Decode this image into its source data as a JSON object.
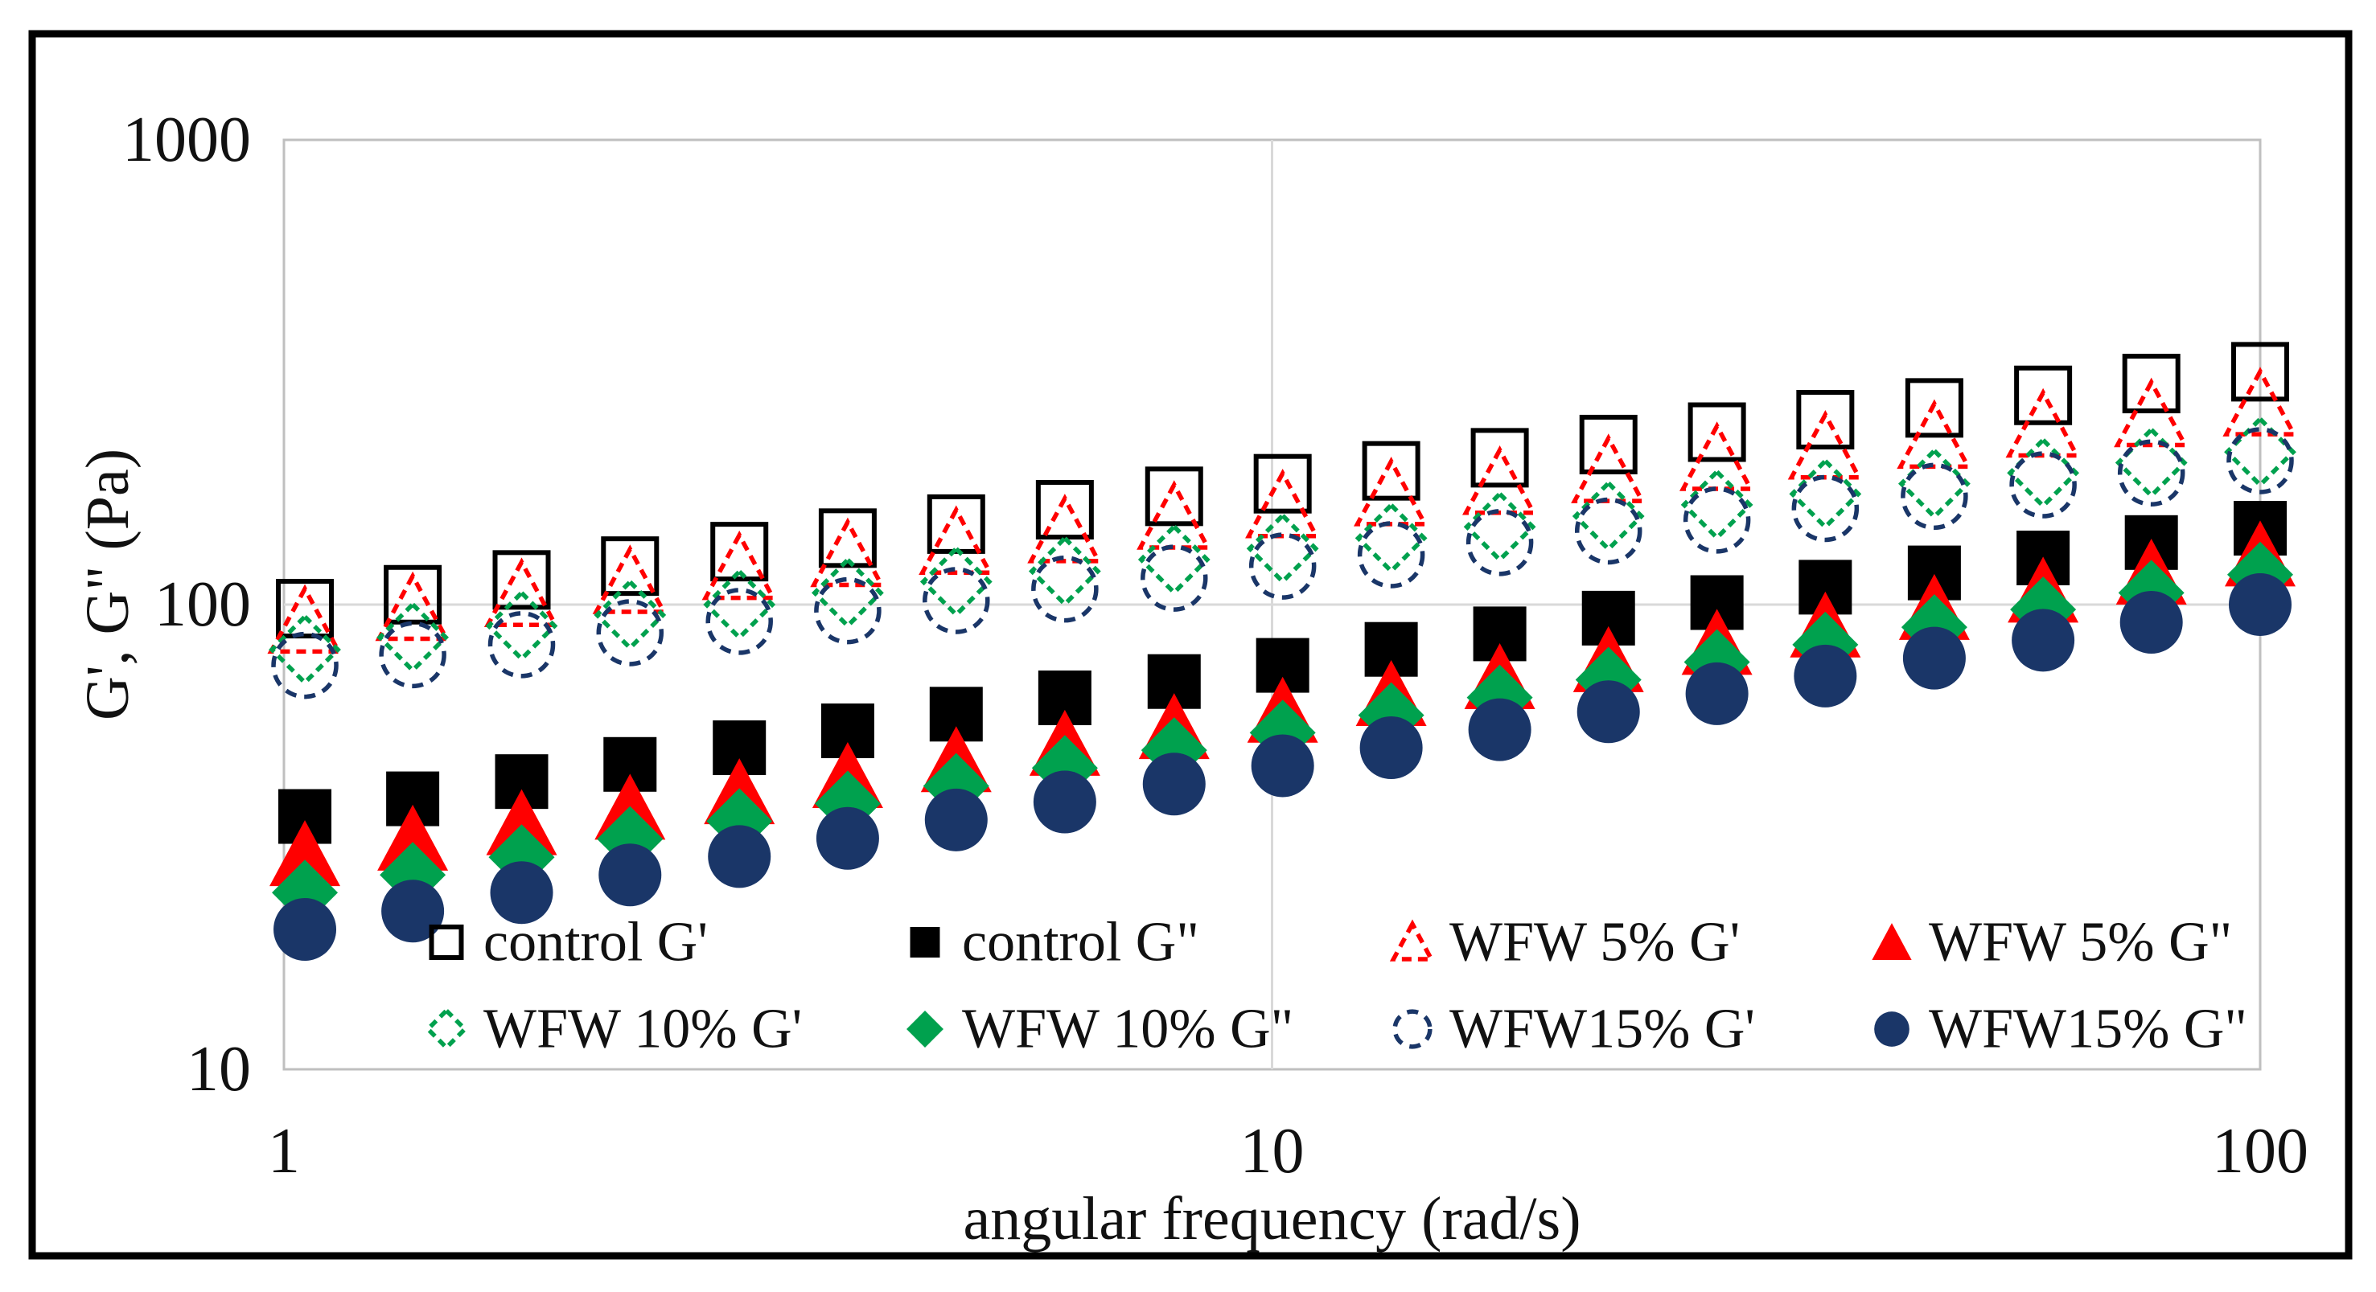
{
  "figure": {
    "kind": "log-log frequency sweep rheology plot",
    "outer_border_color": "#000000",
    "plot_border_color": "#bfbfbf",
    "grid_color": "#d9d9d9",
    "background": "#ffffff"
  },
  "chart_data": {
    "type": "scatter",
    "title": "",
    "xlabel": "angular frequency (rad/s)",
    "ylabel": "G', G\" (Pa)",
    "x_scale": "log",
    "y_scale": "log",
    "xlim": [
      1,
      100
    ],
    "ylim": [
      10,
      1000
    ],
    "x_tick_labels": [
      "1",
      "10",
      "100"
    ],
    "x_tick_values": [
      1,
      10,
      100
    ],
    "y_tick_labels": [
      "1000",
      "100",
      "10"
    ],
    "y_tick_values": [
      1000,
      100,
      10
    ],
    "grid": {
      "x_at": [
        10
      ],
      "y_at": [
        100
      ],
      "on": true
    },
    "legend_position": "inside-bottom",
    "x": [
      1.05,
      1.35,
      1.74,
      2.24,
      2.89,
      3.72,
      4.79,
      6.17,
      7.96,
      10.25,
      13.2,
      17.0,
      21.9,
      28.2,
      36.3,
      46.8,
      60.3,
      77.6,
      100
    ],
    "series": [
      {
        "name": "control G'",
        "marker": "square",
        "filled": false,
        "color": "#000000",
        "values": [
          98,
          105,
          113,
          121,
          130,
          139,
          149,
          160,
          171,
          182,
          194,
          207,
          221,
          235,
          250,
          265,
          282,
          299,
          317
        ]
      },
      {
        "name": "control G\"",
        "marker": "square",
        "filled": true,
        "color": "#000000",
        "values": [
          35,
          38.2,
          41.6,
          45.3,
          49.2,
          53.5,
          58.1,
          63,
          68.3,
          74,
          80.1,
          86.5,
          93.5,
          101,
          109,
          117,
          126,
          136,
          146
        ]
      },
      {
        "name": "WFW 5% G'",
        "marker": "triangle",
        "filled": false,
        "color": "#ff0000",
        "values": [
          92,
          98,
          105,
          112,
          120,
          128,
          136,
          144,
          154,
          163,
          173,
          183,
          194,
          206,
          218,
          230,
          243,
          256,
          270
        ]
      },
      {
        "name": "WFW 5% G\"",
        "marker": "triangle",
        "filled": true,
        "color": "#ff0000",
        "values": [
          29,
          31.3,
          33.8,
          36.5,
          39.4,
          42.7,
          46.2,
          50.1,
          54.4,
          59,
          64.1,
          69.7,
          75.8,
          82.6,
          90,
          98.2,
          107,
          117,
          128
        ]
      },
      {
        "name": "WFW 10% G'",
        "marker": "diamond",
        "filled": false,
        "color": "#00a14e",
        "values": [
          80,
          85,
          90,
          95,
          100,
          106,
          112,
          118,
          125,
          132,
          139,
          147,
          155,
          164,
          173,
          182,
          192,
          202,
          213
        ]
      },
      {
        "name": "WFW 10% G\"",
        "marker": "diamond",
        "filled": true,
        "color": "#00a14e",
        "values": [
          24,
          26.2,
          28.6,
          31.3,
          34.2,
          37.3,
          40.7,
          44.5,
          48.6,
          53,
          57.8,
          63.1,
          68.9,
          75.2,
          82,
          89.4,
          97.6,
          106,
          116
        ]
      },
      {
        "name": "WFW15% G'",
        "marker": "circle",
        "filled": false,
        "color": "#1a3668",
        "values": [
          74,
          78,
          82,
          87,
          92,
          97,
          102,
          108,
          114,
          121,
          128,
          136,
          144,
          152,
          161,
          171,
          181,
          192,
          204
        ]
      },
      {
        "name": "WFW15% G\"",
        "marker": "circle",
        "filled": true,
        "color": "#1a3668",
        "values": [
          20,
          21.9,
          24,
          26.2,
          28.7,
          31.4,
          34.4,
          37.6,
          41.1,
          45,
          49.2,
          53.8,
          58.8,
          64.3,
          70.2,
          76.7,
          83.8,
          91.6,
          100
        ]
      }
    ],
    "legend_rows": [
      [
        0,
        1,
        2,
        3
      ],
      [
        4,
        5,
        6,
        7
      ]
    ]
  }
}
